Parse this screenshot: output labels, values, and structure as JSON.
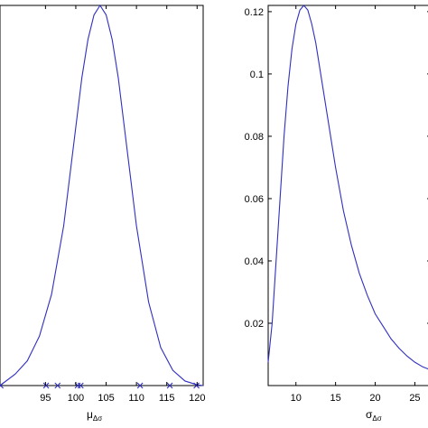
{
  "chart_data": [
    {
      "type": "line",
      "title": "",
      "xlabel": "μ",
      "xlabel_subscript": "Δσ",
      "ylabel": "",
      "xlim": [
        87.5,
        121
      ],
      "ylim": [
        0,
        1
      ],
      "xticks": [
        95,
        100,
        105,
        110,
        115,
        120
      ],
      "yticks": [],
      "grid": false,
      "series": [
        {
          "color": "#3030c0",
          "x": [
            87.5,
            90,
            92,
            94,
            96,
            98,
            100,
            101,
            102,
            103,
            104,
            105,
            106,
            107,
            108,
            110,
            112,
            114,
            116,
            118,
            120,
            121
          ],
          "y": [
            0.0,
            0.03,
            0.065,
            0.13,
            0.24,
            0.42,
            0.68,
            0.81,
            0.91,
            0.975,
            1.0,
            0.975,
            0.91,
            0.81,
            0.68,
            0.42,
            0.22,
            0.1,
            0.04,
            0.012,
            0.002,
            0.0
          ]
        }
      ],
      "markers": {
        "symbol": "x",
        "color": "#3030c0",
        "x": [
          87.6,
          95.1,
          97.0,
          100.3,
          100.8,
          110.6,
          115.5,
          119.9
        ],
        "y": [
          0,
          0,
          0,
          0,
          0,
          0,
          0,
          0
        ]
      }
    },
    {
      "type": "line",
      "title": "",
      "xlabel": "σ",
      "xlabel_subscript": "Δσ",
      "ylabel": "",
      "xlim": [
        6.5,
        27
      ],
      "ylim": [
        0,
        0.122
      ],
      "xticks": [
        10,
        15,
        20,
        25
      ],
      "xtick_labels": [
        "10",
        "15",
        "20",
        "25"
      ],
      "yticks": [
        0.02,
        0.04,
        0.06,
        0.08,
        0.1,
        0.12
      ],
      "ytick_labels": [
        "0.02",
        "0.04",
        "0.06",
        "0.08",
        "0.1",
        "0.12"
      ],
      "grid": false,
      "series": [
        {
          "color": "#3030c0",
          "x": [
            6.5,
            7,
            7.5,
            8,
            8.5,
            9,
            9.5,
            10,
            10.5,
            11,
            11.5,
            12,
            12.5,
            13,
            14,
            15,
            16,
            17,
            18,
            19,
            20,
            21,
            22,
            23,
            24,
            25,
            26,
            27
          ],
          "y": [
            0.0075,
            0.02,
            0.04,
            0.06,
            0.08,
            0.096,
            0.108,
            0.116,
            0.1205,
            0.122,
            0.1205,
            0.116,
            0.11,
            0.102,
            0.086,
            0.07,
            0.056,
            0.045,
            0.036,
            0.029,
            0.023,
            0.019,
            0.015,
            0.012,
            0.0095,
            0.0075,
            0.006,
            0.005
          ]
        }
      ]
    }
  ]
}
